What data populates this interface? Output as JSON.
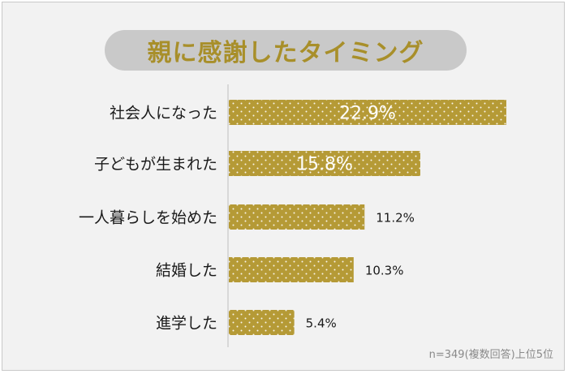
{
  "title": "親に感謝したタイミング",
  "footnote": "n=349(複数回答)上位5位",
  "colors": {
    "bar": "#b59a36",
    "title_text": "#a88f2a",
    "title_pill": "#c9c9c9",
    "background": "#f2f2f2"
  },
  "chart_data": {
    "type": "bar",
    "orientation": "horizontal",
    "title": "親に感謝したタイミング",
    "categories": [
      "社会人になった",
      "子どもが生まれた",
      "一人暮らしを始めた",
      "結婚した",
      "進学した"
    ],
    "values": [
      22.9,
      15.8,
      11.2,
      10.3,
      5.4
    ],
    "value_labels": [
      "22.9%",
      "15.8%",
      "11.2%",
      "10.3%",
      "5.4%"
    ],
    "unit": "%",
    "xlim": [
      0,
      22.9
    ],
    "grid": false,
    "legend": "none"
  }
}
